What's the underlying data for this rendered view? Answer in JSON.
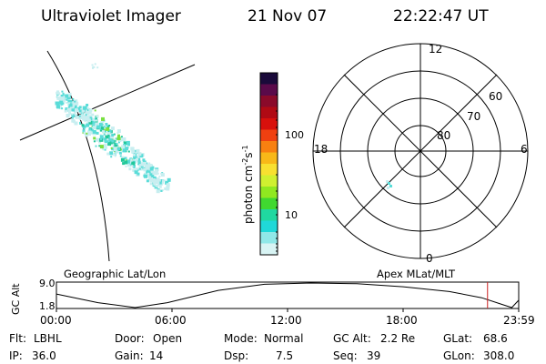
{
  "header": {
    "instrument": "Ultraviolet Imager",
    "date": "21 Nov 07",
    "time": "22:22:47 UT"
  },
  "left_panel_label": "Geographic Lat/Lon",
  "right_panel_label": "Apex MLat/MLT",
  "polar_plot": {
    "mlt_labels": [
      "12",
      "18",
      "6",
      "0"
    ],
    "mlat_labels": [
      "60",
      "70",
      "80"
    ]
  },
  "colorbar": {
    "unit_label": "photon cm",
    "unit_sup1": "-2",
    "unit_s": "s",
    "unit_sup2": "-1",
    "tick_labels": [
      "100",
      "10"
    ],
    "colors": [
      "#1a0a3a",
      "#5a0a4a",
      "#8a0a2a",
      "#b00a14",
      "#d8100c",
      "#f04010",
      "#f88010",
      "#f8b818",
      "#f8e030",
      "#d0f030",
      "#90e820",
      "#40d830",
      "#20d8a0",
      "#20d8d8",
      "#90e8e8",
      "#d8f4f4"
    ]
  },
  "gc_alt_track": {
    "axis_label": "GC Alt",
    "y_ticks": [
      "9.0",
      "1.8"
    ],
    "time_ticks": [
      "00:00",
      "06:00",
      "12:00",
      "18:00",
      "23:59"
    ],
    "current_time_marker": "22:22",
    "marker_color": "#cc2222"
  },
  "info": {
    "flt_label": "Flt:",
    "flt_value": "LBHL",
    "ip_label": "IP:",
    "ip_value": "36.0",
    "door_label": "Door:",
    "door_value": "Open",
    "gain_label": "Gain:",
    "gain_value": "14",
    "mode_label": "Mode:",
    "mode_value": "Normal",
    "dsp_label": "Dsp:",
    "dsp_value": "7.5",
    "gcalt_label": "GC Alt:",
    "gcalt_value": "2.2 Re",
    "seq_label": "Seq:",
    "seq_value": "39",
    "glat_label": "GLat:",
    "glat_value": "68.6",
    "glon_label": "GLon:",
    "glon_value": "308.0"
  },
  "colors": {
    "aurora_light": "#c8eef0",
    "aurora_mid": "#5adcd8",
    "aurora_bright": "#22c89a",
    "aurora_peak": "#7ae040"
  }
}
